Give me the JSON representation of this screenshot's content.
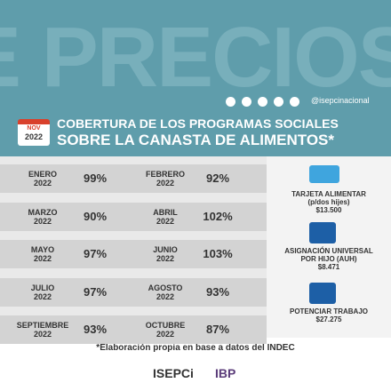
{
  "header": {
    "watermark": "E PRECIOS",
    "social_handle": "@isepcinacional",
    "badge": {
      "month": "NOV",
      "year": "2022"
    },
    "title_lines": [
      "COBERTURA DE LOS PROGRAMAS SOCIALES",
      "SOBRE LA CANASTA DE ALIMENTOS*"
    ]
  },
  "table": {
    "rows": [
      [
        {
          "month": "ENERO",
          "year": "2022",
          "value": "99%"
        },
        {
          "month": "FEBRERO",
          "year": "2022",
          "value": "92%"
        }
      ],
      [
        {
          "month": "MARZO",
          "year": "2022",
          "value": "90%"
        },
        {
          "month": "ABRIL",
          "year": "2022",
          "value": "102%"
        }
      ],
      [
        {
          "month": "MAYO",
          "year": "2022",
          "value": "97%"
        },
        {
          "month": "JUNIO",
          "year": "2022",
          "value": "103%"
        }
      ],
      [
        {
          "month": "JULIO",
          "year": "2022",
          "value": "97%"
        },
        {
          "month": "AGOSTO",
          "year": "2022",
          "value": "93%"
        }
      ],
      [
        {
          "month": "SEPTIEMBRE",
          "year": "2022",
          "value": "93%"
        },
        {
          "month": "OCTUBRE",
          "year": "2022",
          "value": "87%"
        }
      ]
    ]
  },
  "programs": [
    {
      "name_lines": [
        "TARJETA ALIMENTAR",
        "(p/dos hijes)"
      ],
      "amount": "$13.500"
    },
    {
      "name_lines": [
        "ASIGNACIÓN UNIVERSAL",
        "POR HIJO (AUH)"
      ],
      "amount": "$8.471"
    },
    {
      "name_lines": [
        "POTENCIAR TRABAJO"
      ],
      "amount": "$27.275"
    }
  ],
  "footer": {
    "note": "*Elaboración propia en base a datos del INDEC",
    "logos": [
      "ISEPCi",
      "IBP"
    ]
  }
}
